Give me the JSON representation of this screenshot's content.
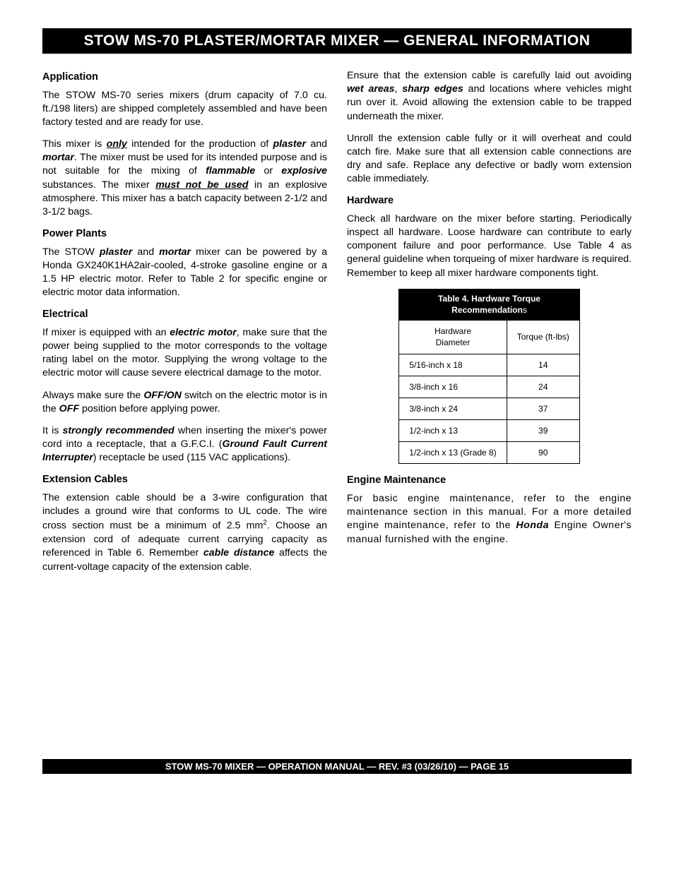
{
  "title": "STOW MS-70 PLASTER/MORTAR MIXER  — GENERAL INFORMATION",
  "left": {
    "h1": "Application",
    "p1a": "The STOW MS-70 series mixers (drum capacity of 7.0 cu. ft./198 liters) are shipped completely assembled and have been factory tested and are ready for use.",
    "p1b_1": "This mixer is ",
    "p1b_only": "only",
    "p1b_2": " intended for the production of ",
    "p1b_plaster": "plaster",
    "p1b_3": " and ",
    "p1b_mortar": "mortar",
    "p1b_4": ".  The mixer must be used for its intended purpose and is not suitable for the mixing of ",
    "p1b_flammable": "flammable",
    "p1b_5": " or ",
    "p1b_explosive": "explosive",
    "p1b_6": " substances.  The mixer ",
    "p1b_must": "must not be used",
    "p1b_7": " in an explosive atmosphere. This mixer has a batch capacity between 2-1/2 and 3-1/2 bags.",
    "h2": "Power Plants",
    "p2_1": "The STOW ",
    "p2_plaster": "plaster",
    "p2_2": " and ",
    "p2_mortar": "mortar",
    "p2_3": " mixer can be powered by a Honda GX240K1HA2air-cooled, 4-stroke gasoline engine or a 1.5 HP electric motor. Refer to Table 2 for specific engine or electric motor data information.",
    "h3": "Electrical",
    "p3a_1": "If mixer is equipped with an ",
    "p3a_em": "electric motor",
    "p3a_2": ", make sure that the power being supplied to the motor corresponds to the voltage rating label on the motor. Supplying the wrong voltage to the electric motor will cause severe electrical damage to the motor.",
    "p3b_1": "Always make sure the ",
    "p3b_offon": "OFF/ON",
    "p3b_2": " switch on the electric motor is in the ",
    "p3b_off": "OFF",
    "p3b_3": " position before applying power.",
    "p3c_1": "It is ",
    "p3c_sr": "strongly recommended",
    "p3c_2": "  when inserting the mixer's power cord into a receptacle, that a G.F.C.I. (",
    "p3c_gfci": "Ground Fault Current Interrupter",
    "p3c_3": ") receptacle be used (115 VAC applications).",
    "h4": "Extension Cables",
    "p4a_1": "The extension cable should be a 3-wire configuration that includes a ground wire that conforms to UL code. The wire cross section must be a minimum of 2.5 mm",
    "p4a_2": ". Choose an extension cord of adequate current carrying capacity as referenced in Table 6. Remember ",
    "p4a_cd": "cable distance",
    "p4a_3": " affects the current-voltage capacity of the extension cable."
  },
  "right": {
    "p1_1": "Ensure that the extension cable is carefully laid out avoiding ",
    "p1_wet": "wet areas",
    "p1_2": ", ",
    "p1_sharp": "sharp edges",
    "p1_3": " and locations where vehicles might run over it. Avoid allowing the extension cable to be trapped underneath the mixer.",
    "p2": "Unroll the extension cable fully or it will overheat and could catch fire.  Make sure that all extension cable connections are dry and safe. Replace any defective or badly worn extension cable immediately.",
    "h1": "Hardware",
    "p3": "Check all hardware on the mixer before starting. Periodically inspect all hardware. Loose hardware can contribute to early component failure and poor performance.  Use Table 4 as general guideline when torqueing of mixer hardware is required. Remember to keep all mixer hardware components tight.",
    "h2": "Engine Maintenance",
    "p4_1": "For basic engine maintenance, refer to the engine maintenance section in this manual. For a more detailed engine maintenance, refer to the  ",
    "p4_honda": "Honda",
    "p4_2": " Engine Owner's manual furnished with the engine."
  },
  "table": {
    "caption_l1": "Table 4. Hardware Torque",
    "caption_l2": "Recommendation",
    "caption_s": "s",
    "th1_l1": "Hardware",
    "th1_l2": "Diameter",
    "th2": "Torque (ft-lbs)",
    "rows": [
      {
        "d": "5/16-inch x 18",
        "t": "14"
      },
      {
        "d": "3/8-inch x 16",
        "t": "24"
      },
      {
        "d": "3/8-inch x 24",
        "t": "37"
      },
      {
        "d": "1/2-inch x 13",
        "t": "39"
      },
      {
        "d": "1/2-inch x 13 (Grade 8)",
        "t": "90"
      }
    ]
  },
  "footer": "STOW MS-70 MIXER — OPERATION MANUAL — REV. #3 (03/26/10) — PAGE 15"
}
